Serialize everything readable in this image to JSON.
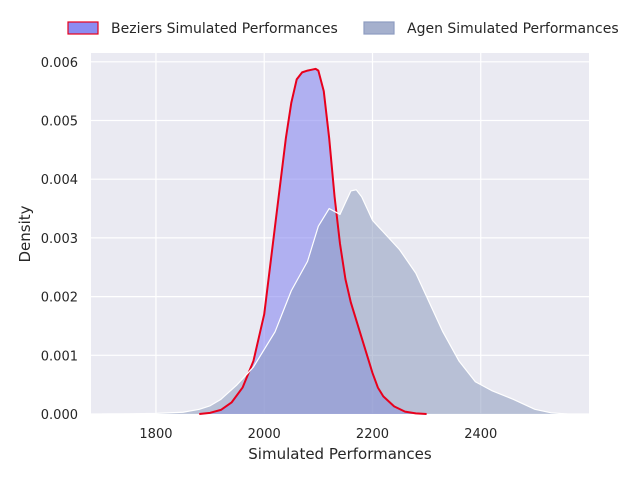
{
  "chart_data": {
    "type": "area",
    "xlabel": "Simulated Performances",
    "ylabel": "Density",
    "xlim": [
      1680,
      2600
    ],
    "ylim": [
      0,
      0.00615
    ],
    "xticks": [
      1800,
      2000,
      2200,
      2400
    ],
    "xtick_labels": [
      "1800",
      "2000",
      "2200",
      "2400"
    ],
    "yticks": [
      0,
      0.001,
      0.002,
      0.003,
      0.004,
      0.005,
      0.006
    ],
    "ytick_labels": [
      "0.000",
      "0.001",
      "0.002",
      "0.003",
      "0.004",
      "0.005",
      "0.006"
    ],
    "grid": true,
    "legend": {
      "placement": "top",
      "columns": 2
    },
    "series": [
      {
        "name": "Beziers Simulated Performances",
        "fill": "#8080f0",
        "fill_opacity": 0.55,
        "stroke": "#e8001c",
        "x": [
          1880,
          1900,
          1920,
          1940,
          1960,
          1980,
          2000,
          2020,
          2040,
          2050,
          2060,
          2070,
          2080,
          2090,
          2095,
          2100,
          2110,
          2120,
          2130,
          2140,
          2150,
          2160,
          2170,
          2180,
          2190,
          2200,
          2210,
          2220,
          2240,
          2260,
          2280,
          2300
        ],
        "y": [
          0,
          2e-05,
          7e-05,
          0.0002,
          0.00045,
          0.0009,
          0.0017,
          0.0032,
          0.0047,
          0.0053,
          0.0057,
          0.00582,
          0.00585,
          0.00587,
          0.00588,
          0.00585,
          0.0055,
          0.0047,
          0.0037,
          0.0029,
          0.0023,
          0.0019,
          0.0016,
          0.0013,
          0.001,
          0.0007,
          0.00045,
          0.0003,
          0.00013,
          4e-05,
          1e-05,
          0
        ]
      },
      {
        "name": "Agen Simulated Performances",
        "fill": "#8e9cc0",
        "fill_opacity": 0.55,
        "stroke": "#ffffff",
        "x": [
          1700,
          1750,
          1800,
          1850,
          1880,
          1900,
          1920,
          1950,
          1980,
          2000,
          2020,
          2050,
          2080,
          2100,
          2120,
          2140,
          2150,
          2160,
          2170,
          2180,
          2190,
          2200,
          2220,
          2250,
          2280,
          2300,
          2330,
          2360,
          2390,
          2420,
          2460,
          2500,
          2530,
          2560
        ],
        "y": [
          0,
          3e-06,
          1e-05,
          3e-05,
          8e-05,
          0.00014,
          0.00025,
          0.0005,
          0.0008,
          0.0011,
          0.0014,
          0.0021,
          0.0026,
          0.0032,
          0.0035,
          0.0034,
          0.0036,
          0.0038,
          0.00382,
          0.0037,
          0.0035,
          0.0033,
          0.0031,
          0.0028,
          0.0024,
          0.002,
          0.0014,
          0.0009,
          0.00055,
          0.0004,
          0.00025,
          8e-05,
          2e-05,
          0
        ]
      }
    ]
  }
}
